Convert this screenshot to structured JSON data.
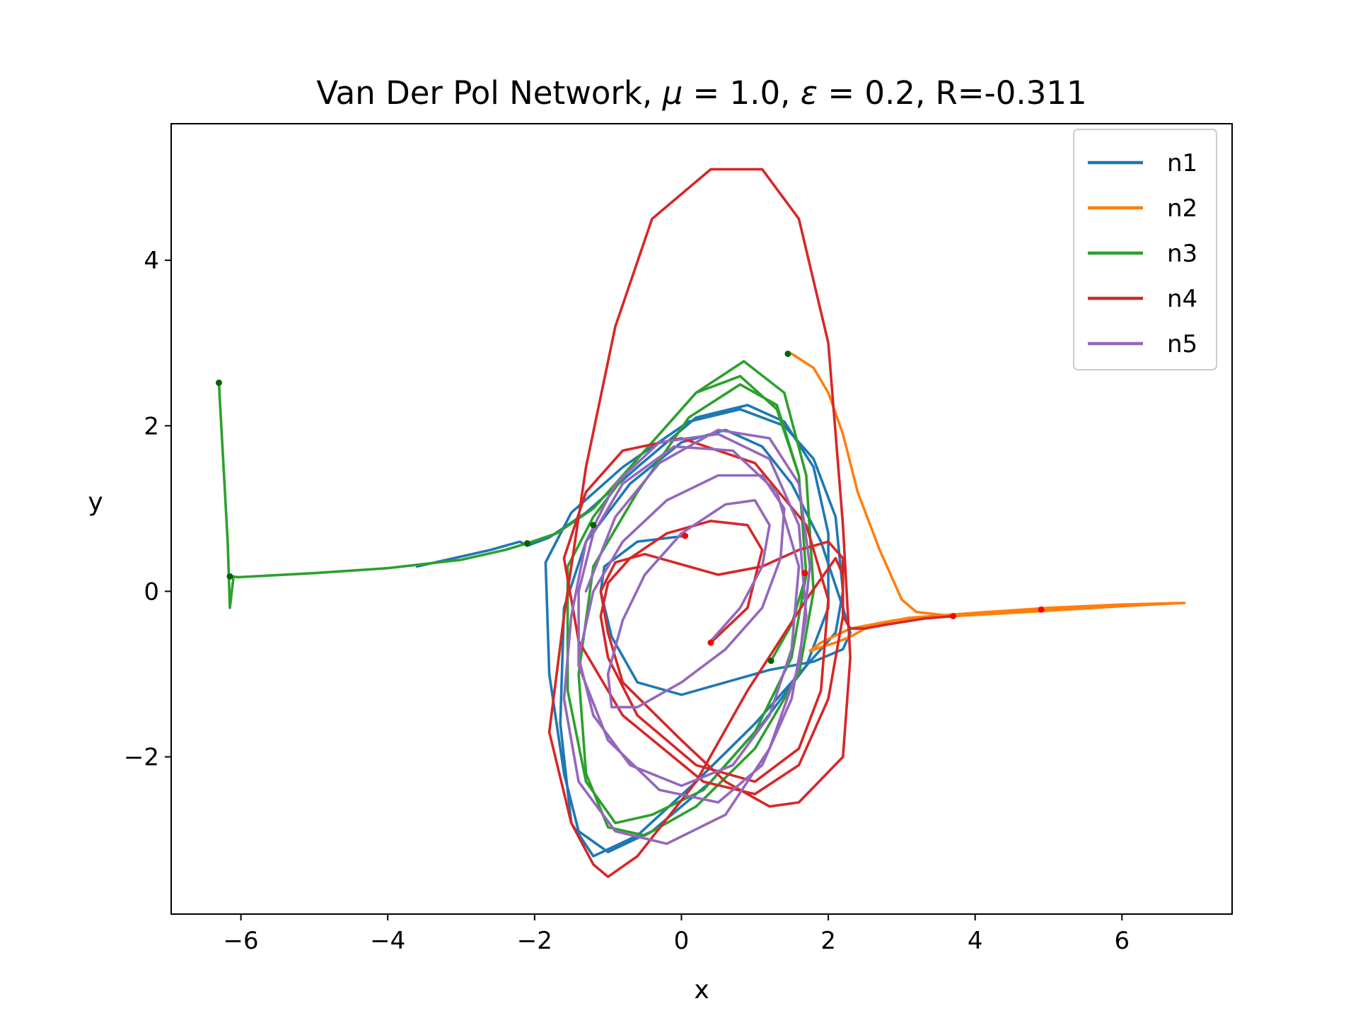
{
  "chart_data": {
    "type": "line",
    "title_parts": [
      "Van Der Pol Network, ",
      "μ",
      " = 1.0, ",
      "ε",
      " = 0.2, R=-0.311"
    ],
    "xlabel": "x",
    "ylabel": "y",
    "xlim": [
      -6.95,
      7.5
    ],
    "ylim": [
      -3.9,
      5.65
    ],
    "xticks": [
      -6,
      -4,
      -2,
      0,
      2,
      4,
      6
    ],
    "xtick_labels": [
      "−6",
      "−4",
      "−2",
      "0",
      "2",
      "4",
      "6"
    ],
    "yticks": [
      -2,
      0,
      2,
      4
    ],
    "ytick_labels": [
      "−2",
      "0",
      "2",
      "4"
    ],
    "grid": false,
    "legend_position": "top-right",
    "series": [
      {
        "name": "n1",
        "color": "#1f77b4",
        "x": [
          -3.6,
          -2.6,
          -2.2,
          -2.1,
          -1.8,
          -1.3,
          -0.6,
          0.2,
          0.9,
          1.4,
          1.8,
          2.0,
          2.0,
          1.7,
          1.1,
          0.4,
          -0.4,
          -1.0,
          -1.4,
          -1.6,
          -1.8,
          -1.85,
          -1.5,
          -0.8,
          0.1,
          0.8,
          1.4,
          1.8,
          2.1,
          2.2,
          2.1,
          1.6,
          1.0,
          0.2,
          -0.6,
          -1.2,
          -1.5,
          -1.65,
          -1.6,
          -1.3,
          -0.7,
          0.0,
          0.6,
          1.1,
          1.5,
          1.9,
          2.2,
          2.3,
          2.2,
          1.8,
          1.2,
          0.6,
          0.0,
          -0.6,
          -0.95,
          -1.1,
          -1.05,
          -0.6,
          0.05
        ],
        "y": [
          0.3,
          0.5,
          0.6,
          0.55,
          0.65,
          0.95,
          1.5,
          2.1,
          2.25,
          2.05,
          1.5,
          0.7,
          -0.2,
          -0.9,
          -1.6,
          -2.3,
          -2.9,
          -3.15,
          -2.9,
          -2.2,
          -1.0,
          0.35,
          0.95,
          1.5,
          2.05,
          2.2,
          2.0,
          1.6,
          0.9,
          0.0,
          -0.5,
          -1.0,
          -1.6,
          -2.3,
          -2.95,
          -3.2,
          -2.8,
          -1.6,
          -0.2,
          0.6,
          1.3,
          1.8,
          1.95,
          1.75,
          1.3,
          0.6,
          -0.2,
          -0.5,
          -0.7,
          -0.85,
          -0.95,
          -1.1,
          -1.25,
          -1.1,
          -0.55,
          0.0,
          0.3,
          0.6,
          0.67
        ]
      },
      {
        "name": "n2",
        "color": "#ff7f0e",
        "x": [
          6.85,
          6.0,
          5.0,
          4.0,
          3.4,
          3.1,
          2.8,
          2.5,
          2.3,
          2.1,
          1.95,
          1.75,
          1.9,
          2.3,
          2.9,
          3.7,
          4.9,
          6.0,
          6.85,
          6.0,
          4.9,
          3.7,
          3.2,
          3.0,
          2.7,
          2.4,
          2.2,
          2.0,
          1.8,
          1.5
        ],
        "y": [
          -0.14,
          -0.16,
          -0.2,
          -0.26,
          -0.3,
          -0.32,
          -0.37,
          -0.45,
          -0.55,
          -0.62,
          -0.66,
          -0.72,
          -0.62,
          -0.45,
          -0.35,
          -0.3,
          -0.24,
          -0.18,
          -0.14,
          -0.17,
          -0.22,
          -0.3,
          -0.25,
          -0.1,
          0.5,
          1.2,
          1.9,
          2.4,
          2.7,
          2.87
        ]
      },
      {
        "name": "n3",
        "color": "#2ca02c",
        "x": [
          -6.3,
          -6.18,
          -6.15,
          -6.1,
          -6.05,
          -5.0,
          -4.0,
          -3.0,
          -2.4,
          -2.1,
          -1.7,
          -1.2,
          -0.6,
          0.2,
          0.8,
          1.3,
          1.6,
          1.7,
          1.5,
          1.0,
          0.3,
          -0.4,
          -0.9,
          -1.3,
          -1.55,
          -1.55,
          -1.2,
          -0.6,
          0.2,
          0.85,
          1.4,
          1.7,
          1.8,
          1.6,
          1.0,
          0.2,
          -0.5,
          -1.0,
          -1.3,
          -1.4,
          -1.2,
          -0.6,
          0.1,
          0.8,
          1.3,
          1.6,
          1.7,
          1.5,
          1.22
        ],
        "y": [
          2.52,
          0.6,
          -0.2,
          0.18,
          0.17,
          0.22,
          0.28,
          0.38,
          0.5,
          0.58,
          0.7,
          1.0,
          1.6,
          2.4,
          2.6,
          2.2,
          1.4,
          0.2,
          -0.8,
          -1.7,
          -2.4,
          -2.7,
          -2.8,
          -2.3,
          -1.2,
          0.3,
          0.9,
          1.6,
          2.4,
          2.78,
          2.4,
          1.4,
          0.0,
          -1.0,
          -1.9,
          -2.6,
          -2.95,
          -2.85,
          -2.2,
          -1.0,
          0.3,
          1.2,
          2.1,
          2.5,
          2.25,
          1.4,
          0.2,
          -0.4,
          -0.84
        ]
      },
      {
        "name": "n4",
        "color": "#d62728",
        "x": [
          0.4,
          0.9,
          1.1,
          0.9,
          0.4,
          -0.2,
          -0.7,
          -1.0,
          -1.1,
          -1.0,
          -0.6,
          0.2,
          1.0,
          1.6,
          1.9,
          2.0,
          1.7,
          1.0,
          0.0,
          -0.8,
          -1.3,
          -1.6,
          -1.4,
          -0.8,
          0.3,
          1.0,
          1.6,
          2.0,
          2.2,
          2.2,
          2.0,
          1.6,
          1.1,
          0.5,
          -0.1,
          -0.5,
          -0.9,
          -1.1,
          -1.0,
          -0.8,
          0.0,
          0.6,
          1.2,
          1.6,
          2.2,
          2.3,
          2.2,
          2.0,
          1.6,
          1.1,
          0.4,
          -0.4,
          -0.9,
          -1.3,
          -1.6,
          -1.8,
          -1.5,
          -1.2,
          -1.0,
          -0.6,
          0.2,
          0.9,
          1.7,
          2.1,
          2.2,
          2.2,
          2.3,
          2.5,
          2.8,
          3.3,
          3.7
        ],
        "y": [
          -0.62,
          -0.2,
          0.5,
          0.8,
          0.85,
          0.7,
          0.4,
          0.1,
          -0.3,
          -0.8,
          -1.5,
          -2.1,
          -2.3,
          -1.9,
          -1.2,
          -0.1,
          0.8,
          1.55,
          1.85,
          1.7,
          1.2,
          0.4,
          -0.6,
          -1.5,
          -2.3,
          -2.45,
          -2.1,
          -1.3,
          -0.3,
          0.4,
          0.6,
          0.5,
          0.3,
          0.2,
          0.35,
          0.45,
          0.35,
          0.0,
          -0.5,
          -1.1,
          -1.8,
          -2.3,
          -2.6,
          -2.55,
          -2.0,
          -0.8,
          0.8,
          3.0,
          4.5,
          5.1,
          5.1,
          4.5,
          3.2,
          1.5,
          -0.3,
          -1.7,
          -2.8,
          -3.3,
          -3.45,
          -3.2,
          -2.3,
          -1.2,
          -0.1,
          0.4,
          0.2,
          -0.3,
          -0.45,
          -0.45,
          -0.4,
          -0.33,
          -0.3
        ]
      },
      {
        "name": "n5",
        "color": "#9467bd",
        "x": [
          0.4,
          0.8,
          1.1,
          1.2,
          1.0,
          0.6,
          0.0,
          -0.5,
          -0.8,
          -1.0,
          -0.95,
          -0.6,
          0.0,
          0.6,
          1.1,
          1.35,
          1.4,
          1.1,
          0.5,
          -0.2,
          -0.8,
          -1.2,
          -1.4,
          -1.2,
          -0.7,
          0.0,
          0.7,
          1.2,
          1.5,
          1.6,
          1.3,
          0.7,
          -0.1,
          -0.8,
          -1.2,
          -1.4,
          -1.4,
          -1.0,
          -0.3,
          0.5,
          1.1,
          1.5,
          1.7,
          1.6,
          1.2,
          0.5,
          -0.3,
          -0.9,
          -1.3,
          -1.5,
          -1.6,
          -1.4,
          -0.9,
          -0.2,
          0.6,
          1.2,
          1.6,
          1.75,
          1.6,
          1.2,
          0.5,
          -0.3,
          -0.9,
          -1.3
        ],
        "y": [
          -0.6,
          -0.2,
          0.3,
          0.8,
          1.1,
          1.05,
          0.7,
          0.2,
          -0.35,
          -1.0,
          -1.4,
          -1.4,
          -1.1,
          -0.7,
          -0.2,
          0.4,
          1.0,
          1.4,
          1.4,
          1.1,
          0.6,
          0.0,
          -0.8,
          -1.5,
          -2.1,
          -2.35,
          -2.1,
          -1.5,
          -0.7,
          0.3,
          1.2,
          1.7,
          1.75,
          1.3,
          0.7,
          0.0,
          -0.9,
          -1.8,
          -2.4,
          -2.55,
          -2.1,
          -1.3,
          -0.3,
          0.8,
          1.6,
          1.9,
          1.8,
          1.3,
          0.6,
          -0.3,
          -1.3,
          -2.3,
          -2.9,
          -3.05,
          -2.7,
          -1.9,
          -0.9,
          0.3,
          1.3,
          1.85,
          1.95,
          1.55,
          0.9,
          0.0
        ]
      }
    ],
    "markers": [
      {
        "x": -6.3,
        "y": 2.52,
        "color": "#006400"
      },
      {
        "x": -6.15,
        "y": 0.18,
        "color": "#006400"
      },
      {
        "x": -2.1,
        "y": 0.58,
        "color": "#006400"
      },
      {
        "x": -1.2,
        "y": 0.8,
        "color": "#006400"
      },
      {
        "x": 1.45,
        "y": 2.87,
        "color": "#006400"
      },
      {
        "x": 1.22,
        "y": -0.84,
        "color": "#006400"
      },
      {
        "x": 0.05,
        "y": 0.67,
        "color": "#ff0000"
      },
      {
        "x": 0.4,
        "y": -0.62,
        "color": "#ff0000"
      },
      {
        "x": 1.68,
        "y": 0.22,
        "color": "#ff0000"
      },
      {
        "x": 3.7,
        "y": -0.3,
        "color": "#ff0000"
      },
      {
        "x": 4.9,
        "y": -0.22,
        "color": "#ff0000"
      }
    ]
  }
}
